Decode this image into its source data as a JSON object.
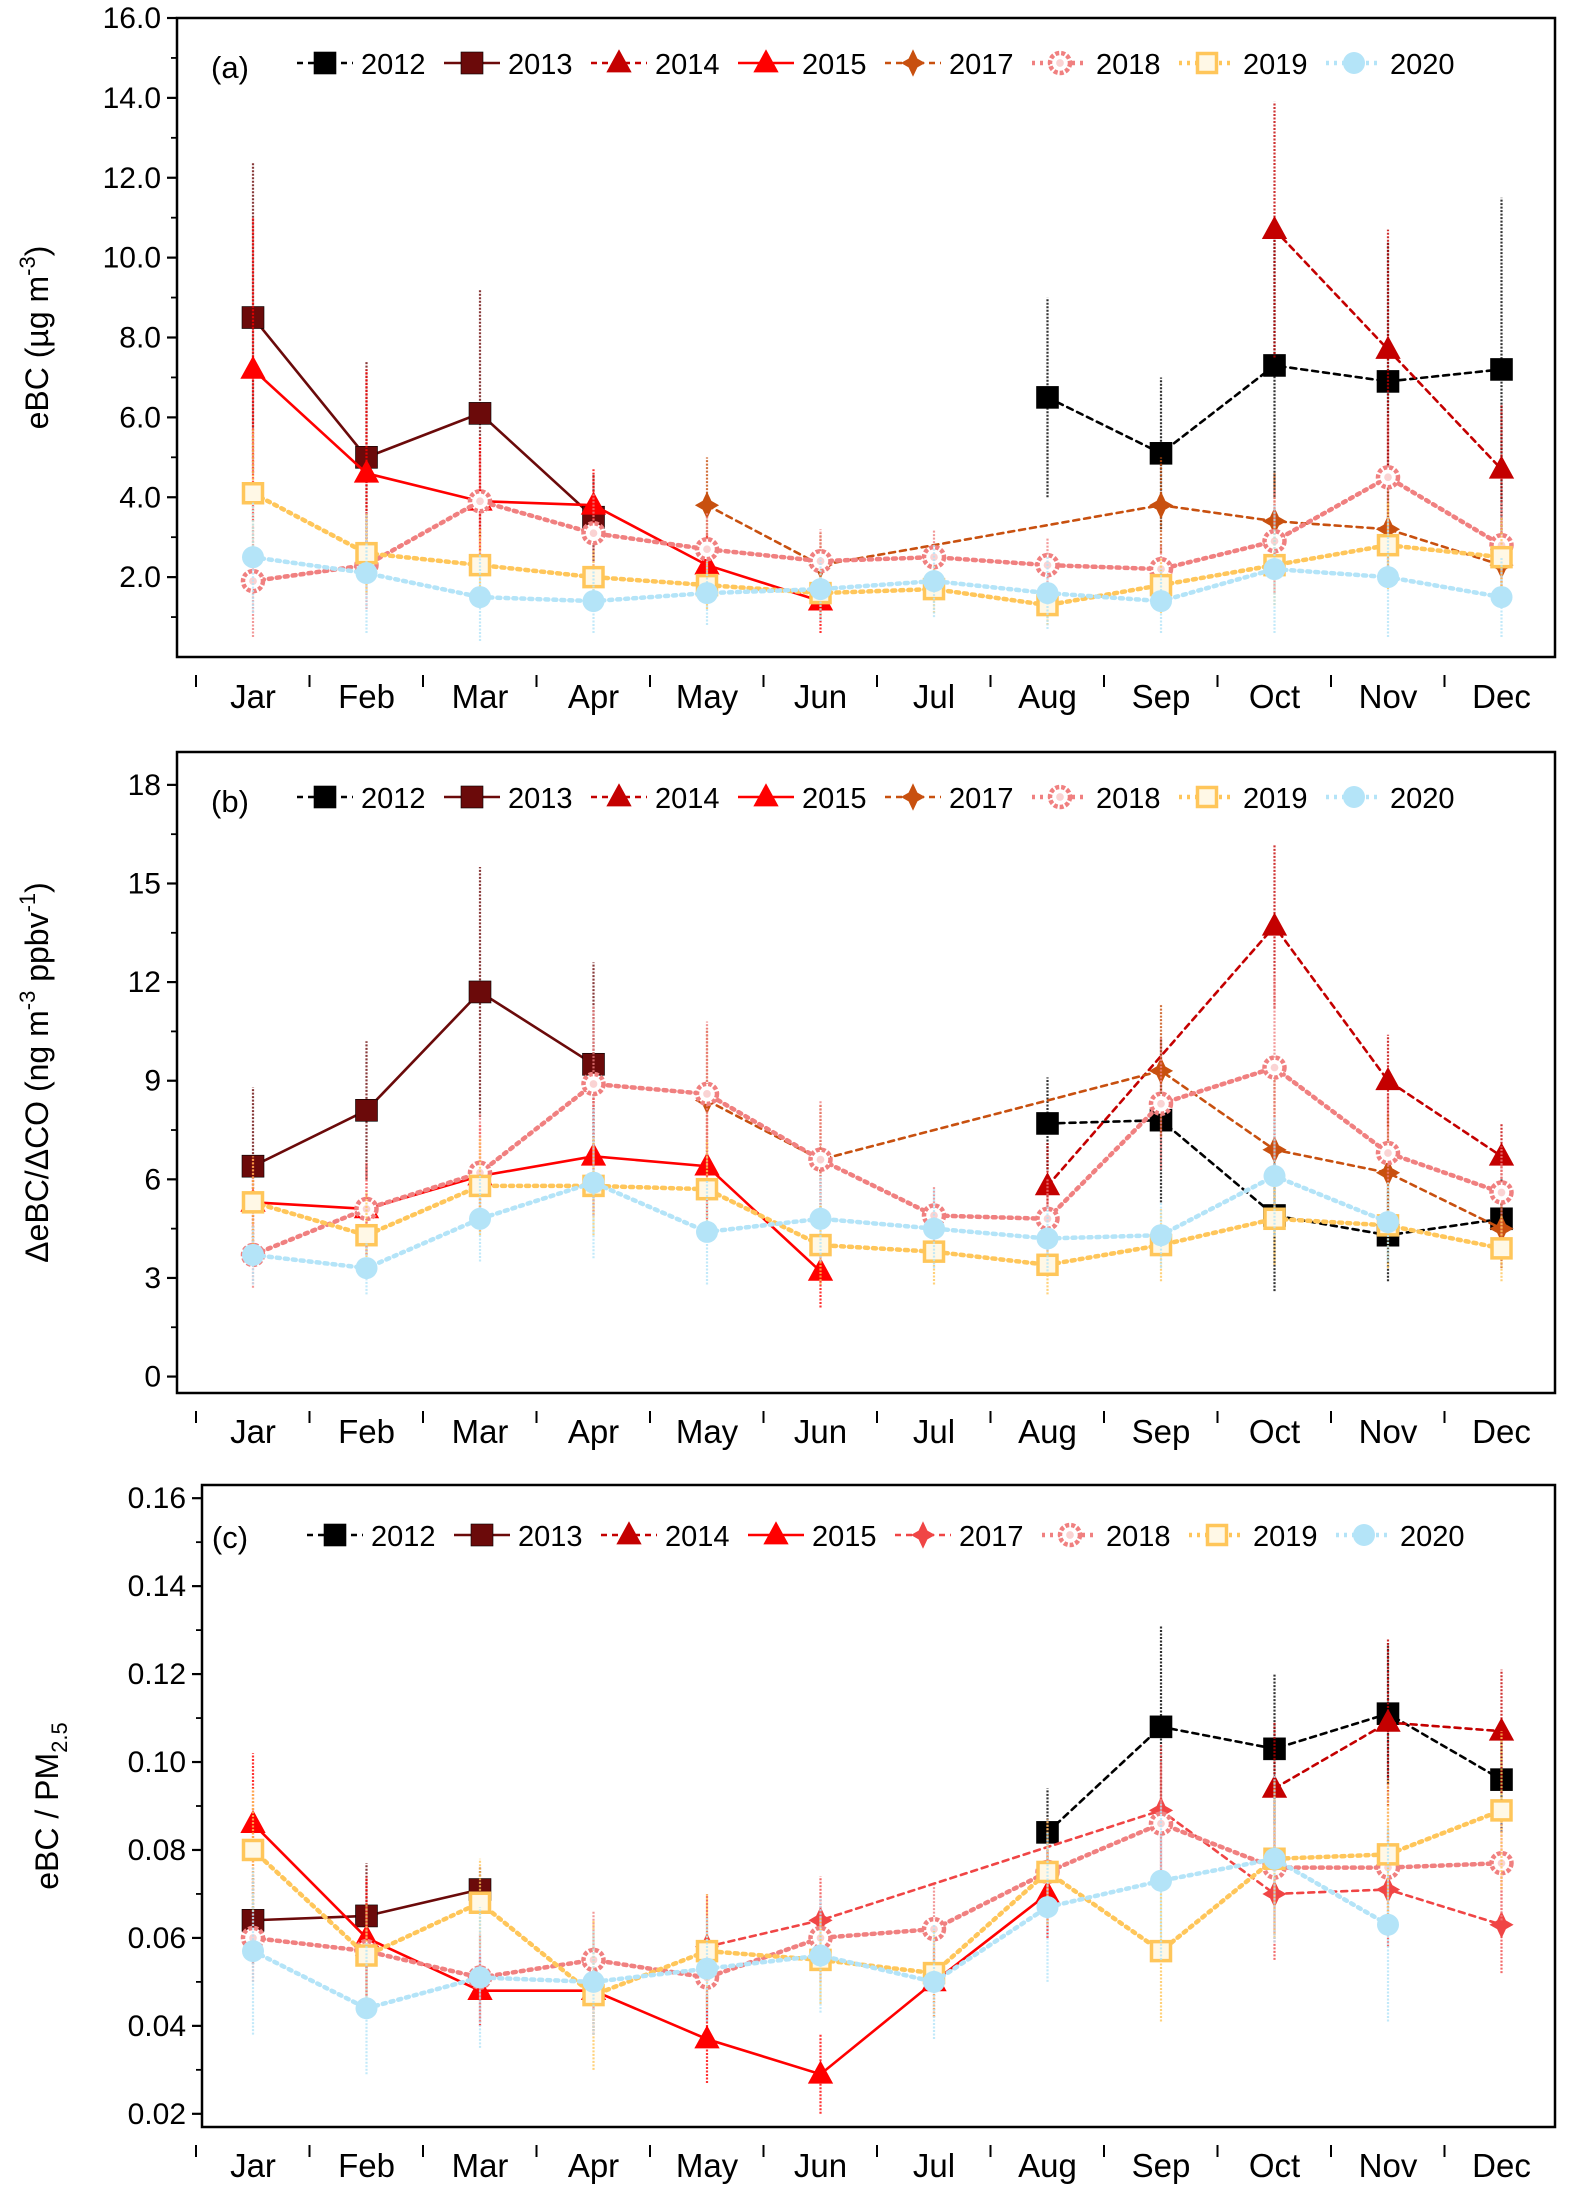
{
  "chart_data": [
    {
      "panel": "(a)",
      "type": "line",
      "ylabel_main": "eBC (µg m",
      "ylabel_sup": "-3",
      "ylabel_end": ")",
      "ylim": [
        0,
        16
      ],
      "yticks": [
        "2.0",
        "4.0",
        "6.0",
        "8.0",
        "10.0",
        "12.0",
        "14.0",
        "16.0"
      ],
      "ytick_values": [
        2,
        4,
        6,
        8,
        10,
        12,
        14,
        16
      ],
      "categories": [
        "Jar",
        "Feb",
        "Mar",
        "Apr",
        "May",
        "Jun",
        "Jul",
        "Aug",
        "Sep",
        "Oct",
        "Nov",
        "Dec"
      ],
      "series": [
        {
          "name": "2012",
          "values": [
            null,
            null,
            null,
            null,
            null,
            null,
            null,
            6.5,
            5.1,
            7.3,
            6.9,
            7.2
          ],
          "err": [
            null,
            null,
            null,
            null,
            null,
            null,
            null,
            2.5,
            1.9,
            3.3,
            3.5,
            4.3
          ]
        },
        {
          "name": "2013",
          "values": [
            8.5,
            5.0,
            6.1,
            3.5,
            null,
            null,
            null,
            null,
            null,
            null,
            null,
            null
          ],
          "err": [
            3.9,
            2.4,
            3.1,
            1.1,
            null,
            null,
            null,
            null,
            null,
            null,
            null,
            null
          ]
        },
        {
          "name": "2014",
          "values": [
            null,
            null,
            null,
            null,
            null,
            null,
            null,
            null,
            null,
            10.7,
            7.7,
            4.7
          ],
          "err": [
            null,
            null,
            null,
            null,
            null,
            null,
            null,
            null,
            null,
            3.2,
            3.0,
            1.6
          ]
        },
        {
          "name": "2015",
          "values": [
            7.2,
            4.6,
            3.9,
            3.8,
            2.3,
            1.4,
            null,
            null,
            null,
            null,
            null,
            null
          ],
          "err": [
            3.8,
            2.6,
            1.6,
            0.9,
            0.8,
            0.8,
            null,
            null,
            null,
            null,
            null,
            null
          ]
        },
        {
          "name": "2017",
          "values": [
            null,
            null,
            null,
            null,
            3.8,
            2.3,
            null,
            null,
            3.8,
            3.4,
            3.2,
            2.3
          ],
          "err": [
            null,
            null,
            null,
            null,
            1.2,
            0.8,
            null,
            null,
            1.2,
            1.2,
            1.2,
            0.8
          ]
        },
        {
          "name": "2018",
          "values": [
            1.9,
            2.3,
            3.9,
            3.1,
            2.7,
            2.4,
            2.5,
            2.3,
            2.2,
            2.9,
            4.5,
            2.8
          ],
          "err": [
            1.4,
            1.1,
            1.2,
            1.0,
            0.9,
            0.8,
            0.7,
            0.7,
            0.6,
            1.3,
            1.5,
            1.1
          ]
        },
        {
          "name": "2019",
          "values": [
            4.1,
            2.6,
            2.3,
            2.0,
            1.8,
            1.6,
            1.7,
            1.3,
            1.8,
            2.3,
            2.8,
            2.5
          ],
          "err": [
            1.6,
            1.0,
            0.9,
            0.7,
            0.6,
            0.6,
            0.6,
            0.5,
            0.7,
            1.0,
            1.1,
            1.0
          ]
        },
        {
          "name": "2020",
          "values": [
            2.5,
            2.1,
            1.5,
            1.4,
            1.6,
            1.7,
            1.9,
            1.6,
            1.4,
            2.2,
            2.0,
            1.5
          ],
          "err": [
            1.4,
            1.5,
            1.1,
            0.8,
            0.8,
            0.8,
            0.9,
            0.9,
            0.8,
            1.6,
            1.5,
            1.0
          ]
        }
      ]
    },
    {
      "panel": "(b)",
      "type": "line",
      "ylabel_main": "ΔeBC/ΔCO (ng m",
      "ylabel_sup": "-3",
      "ylabel_mid": " ppbv",
      "ylabel_sup2": "-1",
      "ylabel_end": ")",
      "ylim": [
        -0.5,
        19
      ],
      "yticks": [
        "0",
        "3",
        "6",
        "9",
        "12",
        "15",
        "18"
      ],
      "ytick_values": [
        0,
        3,
        6,
        9,
        12,
        15,
        18
      ],
      "categories": [
        "Jar",
        "Feb",
        "Mar",
        "Apr",
        "May",
        "Jun",
        "Jul",
        "Aug",
        "Sep",
        "Oct",
        "Nov",
        "Dec"
      ],
      "series": [
        {
          "name": "2012",
          "values": [
            null,
            null,
            null,
            null,
            null,
            null,
            null,
            7.7,
            7.8,
            4.9,
            4.3,
            4.8
          ],
          "err": [
            null,
            null,
            null,
            null,
            null,
            null,
            null,
            1.4,
            2.5,
            2.3,
            1.4,
            1.2
          ]
        },
        {
          "name": "2013",
          "values": [
            6.4,
            8.1,
            11.7,
            9.5,
            null,
            null,
            null,
            null,
            null,
            null,
            null,
            null
          ],
          "err": [
            2.4,
            2.1,
            3.8,
            3.1,
            null,
            null,
            null,
            null,
            null,
            null,
            null,
            null
          ]
        },
        {
          "name": "2014",
          "values": [
            null,
            null,
            null,
            null,
            null,
            null,
            null,
            5.8,
            null,
            13.7,
            9.0,
            6.7
          ],
          "err": [
            null,
            null,
            null,
            null,
            null,
            null,
            null,
            1.3,
            null,
            2.5,
            1.4,
            1.0
          ]
        },
        {
          "name": "2015",
          "values": [
            5.3,
            5.1,
            6.1,
            6.7,
            6.4,
            3.2,
            null,
            null,
            null,
            null,
            null,
            null
          ],
          "err": [
            1.4,
            1.4,
            1.6,
            1.8,
            1.6,
            1.1,
            null,
            null,
            null,
            null,
            null,
            null
          ]
        },
        {
          "name": "2017",
          "values": [
            null,
            null,
            null,
            null,
            8.4,
            6.6,
            null,
            null,
            9.3,
            6.9,
            6.2,
            4.5
          ],
          "err": [
            null,
            null,
            null,
            null,
            2.2,
            1.7,
            null,
            null,
            2.0,
            2.2,
            1.8,
            1.2
          ]
        },
        {
          "name": "2018",
          "values": [
            3.7,
            5.1,
            6.2,
            8.9,
            8.6,
            6.6,
            4.9,
            4.8,
            8.3,
            9.4,
            6.8,
            5.6
          ],
          "err": [
            1.0,
            1.4,
            1.8,
            2.4,
            2.2,
            1.8,
            0.9,
            1.2,
            2.0,
            2.8,
            1.8,
            1.4
          ]
        },
        {
          "name": "2019",
          "values": [
            5.3,
            4.3,
            5.8,
            5.8,
            5.7,
            4.0,
            3.8,
            3.4,
            4.0,
            4.8,
            4.6,
            3.9
          ],
          "err": [
            1.4,
            1.3,
            1.5,
            1.5,
            1.5,
            1.2,
            1.0,
            0.9,
            1.1,
            1.4,
            1.3,
            1.0
          ]
        },
        {
          "name": "2020",
          "values": [
            3.7,
            3.3,
            4.8,
            5.9,
            4.4,
            4.8,
            4.5,
            4.2,
            4.3,
            6.1,
            4.7,
            null
          ],
          "err": [
            0.9,
            0.8,
            1.3,
            2.3,
            1.6,
            1.3,
            1.2,
            1.0,
            1.0,
            1.8,
            1.2,
            null
          ]
        }
      ]
    },
    {
      "panel": "(c)",
      "type": "line",
      "ylabel_main": "eBC / PM",
      "ylabel_sub": "2.5",
      "ylim": [
        0.017,
        0.163
      ],
      "yticks": [
        "0.02",
        "0.04",
        "0.06",
        "0.08",
        "0.10",
        "0.12",
        "0.14",
        "0.16"
      ],
      "ytick_values": [
        0.02,
        0.04,
        0.06,
        0.08,
        0.1,
        0.12,
        0.14,
        0.16
      ],
      "categories": [
        "Jar",
        "Feb",
        "Mar",
        "Apr",
        "May",
        "Jun",
        "Jul",
        "Aug",
        "Sep",
        "Oct",
        "Nov",
        "Dec"
      ],
      "series": [
        {
          "name": "2012",
          "values": [
            null,
            null,
            null,
            null,
            null,
            null,
            null,
            0.084,
            0.108,
            0.103,
            0.111,
            0.096
          ],
          "err": [
            null,
            null,
            null,
            null,
            null,
            null,
            null,
            0.01,
            0.023,
            0.017,
            0.016,
            0.012
          ]
        },
        {
          "name": "2013",
          "values": [
            0.064,
            0.065,
            0.071,
            null,
            null,
            null,
            null,
            null,
            null,
            null,
            null,
            null
          ],
          "err": [
            0.01,
            0.012,
            0.005,
            null,
            null,
            null,
            null,
            null,
            null,
            null,
            null,
            null
          ]
        },
        {
          "name": "2014",
          "values": [
            null,
            null,
            null,
            null,
            null,
            null,
            null,
            null,
            null,
            0.094,
            0.109,
            0.107
          ],
          "err": [
            null,
            null,
            null,
            null,
            null,
            null,
            null,
            null,
            null,
            0.015,
            0.019,
            0.014
          ]
        },
        {
          "name": "2015",
          "values": [
            0.086,
            0.06,
            0.048,
            0.048,
            0.037,
            0.029,
            0.05,
            0.07,
            null,
            null,
            null,
            null
          ],
          "err": [
            0.016,
            0.014,
            0.008,
            0.01,
            0.01,
            0.009,
            0.008,
            0.01,
            null,
            null,
            null,
            null
          ]
        },
        {
          "name": "2017",
          "values": [
            null,
            null,
            null,
            null,
            0.058,
            0.064,
            null,
            null,
            0.089,
            0.07,
            0.071,
            0.063
          ],
          "err": [
            null,
            null,
            null,
            null,
            0.012,
            0.01,
            null,
            null,
            0.015,
            0.015,
            0.013,
            0.011
          ]
        },
        {
          "name": "2018",
          "values": [
            0.06,
            0.057,
            0.051,
            0.055,
            0.051,
            0.06,
            0.062,
            0.075,
            0.086,
            0.076,
            0.076,
            0.077
          ],
          "err": [
            0.01,
            0.01,
            0.01,
            0.011,
            0.01,
            0.01,
            0.01,
            0.012,
            0.014,
            0.015,
            0.014,
            0.013
          ]
        },
        {
          "name": "2019",
          "values": [
            0.08,
            0.056,
            0.068,
            0.047,
            0.057,
            0.055,
            0.052,
            0.075,
            0.057,
            0.078,
            0.079,
            0.089
          ],
          "err": [
            0.014,
            0.012,
            0.01,
            0.017,
            0.013,
            0.01,
            0.01,
            0.012,
            0.016,
            0.018,
            0.017,
            0.018
          ]
        },
        {
          "name": "2020",
          "values": [
            0.057,
            0.044,
            0.051,
            0.05,
            0.053,
            0.056,
            0.05,
            0.067,
            0.073,
            0.078,
            0.063,
            null
          ],
          "err": [
            0.019,
            0.015,
            0.016,
            0.012,
            0.012,
            0.013,
            0.013,
            0.017,
            0.018,
            0.019,
            0.022,
            null
          ]
        }
      ]
    }
  ],
  "legend_entries": [
    "2012",
    "2013",
    "2014",
    "2015",
    "2017",
    "2018",
    "2019",
    "2020"
  ],
  "series_styles": {
    "2012": {
      "color": "#000000",
      "marker": "square-filled",
      "line": "dashed"
    },
    "2013": {
      "color": "#6b0a0a",
      "marker": "square-filled",
      "line": "solid"
    },
    "2014": {
      "color": "#c40000",
      "marker": "triangle-filled",
      "line": "dashed"
    },
    "2015": {
      "color": "#ff0000",
      "marker": "triangle-filled",
      "line": "solid"
    },
    "2017": {
      "color": "#c8500f",
      "marker": "diamond-star",
      "line": "dashed"
    },
    "2017c": {
      "color": "#f04545",
      "marker": "diamond-star",
      "line": "dashed"
    },
    "2018": {
      "color": "#f08080",
      "marker": "circle-dotted-open",
      "line": "dotted"
    },
    "2019": {
      "color": "#ffc65a",
      "marker": "square-open",
      "line": "dotted"
    },
    "2020": {
      "color": "#b4e4f8",
      "marker": "circle-filled",
      "line": "dotted"
    }
  }
}
